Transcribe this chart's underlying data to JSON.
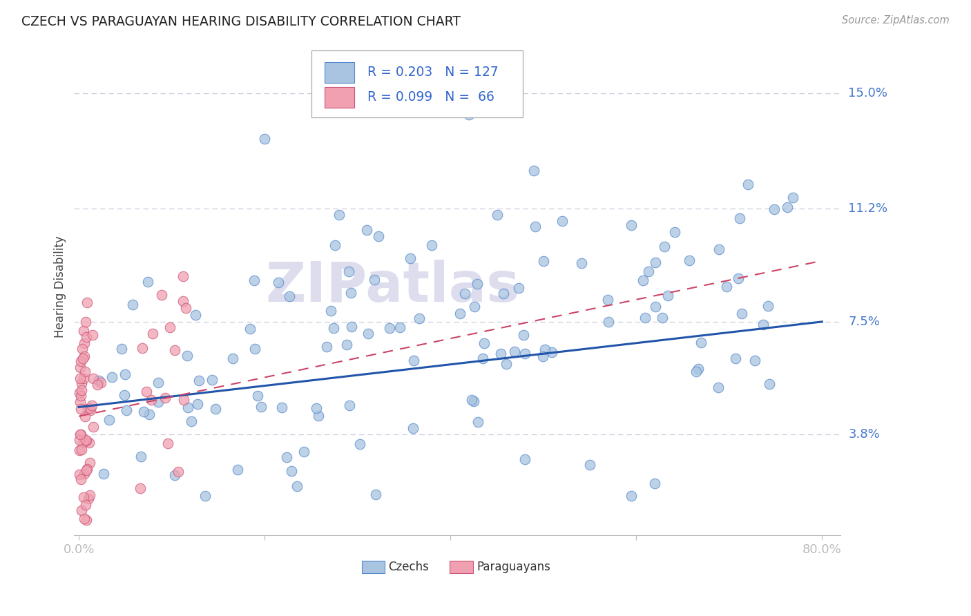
{
  "title": "CZECH VS PARAGUAYAN HEARING DISABILITY CORRELATION CHART",
  "source": "Source: ZipAtlas.com",
  "ylabel": "Hearing Disability",
  "ytick_labels": [
    "3.8%",
    "7.5%",
    "11.2%",
    "15.0%"
  ],
  "ytick_values": [
    0.038,
    0.075,
    0.112,
    0.15
  ],
  "xlim": [
    -0.005,
    0.82
  ],
  "ylim": [
    0.005,
    0.168
  ],
  "blue_R": 0.203,
  "blue_N": 127,
  "pink_R": 0.099,
  "pink_N": 66,
  "blue_fill": "#A8C4E0",
  "blue_edge": "#5588CC",
  "pink_fill": "#F0A0B0",
  "pink_edge": "#CC5577",
  "blue_line_color": "#2255AA",
  "pink_line_color": "#CC4466",
  "background_color": "#FFFFFF",
  "grid_color": "#CCCCDD",
  "title_color": "#222222",
  "axis_label_color": "#444444",
  "tick_color": "#4477CC",
  "watermark_color": "#DDDDEE",
  "legend_text_color": "#3366CC"
}
